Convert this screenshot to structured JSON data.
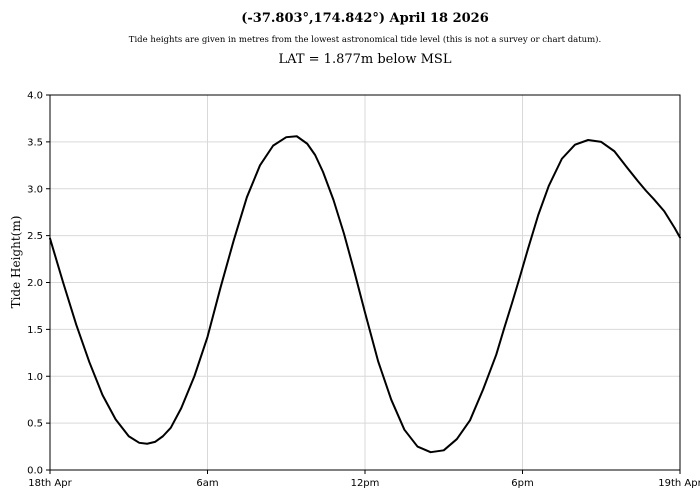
{
  "chart_data": {
    "type": "line",
    "title": "(-37.803°,174.842°) April 18 2026",
    "subtitle": "Tide heights are given in metres from the lowest astronomical tide level (this is not a survey or chart datum).",
    "annotation": "LAT = 1.877m below MSL",
    "xlabel": "",
    "ylabel": "Tide Height(m)",
    "xlim": [
      0,
      24
    ],
    "ylim": [
      0,
      4
    ],
    "grid": true,
    "line_color": "#000000",
    "grid_color": "#d9d9d9",
    "x_ticks": [
      {
        "value": 0,
        "label": "18th Apr"
      },
      {
        "value": 6,
        "label": "6am"
      },
      {
        "value": 12,
        "label": "12pm"
      },
      {
        "value": 18,
        "label": "6pm"
      },
      {
        "value": 24,
        "label": "19th Apr"
      }
    ],
    "y_ticks": [
      {
        "value": 0,
        "label": "0.0"
      },
      {
        "value": 0.5,
        "label": "0.5"
      },
      {
        "value": 1,
        "label": "1.0"
      },
      {
        "value": 1.5,
        "label": "1.5"
      },
      {
        "value": 2,
        "label": "2.0"
      },
      {
        "value": 2.5,
        "label": "2.5"
      },
      {
        "value": 3,
        "label": "3.0"
      },
      {
        "value": 3.5,
        "label": "3.5"
      },
      {
        "value": 4,
        "label": "4.0"
      }
    ],
    "series": [
      {
        "x": [
          0,
          0.5,
          1,
          1.5,
          2,
          2.5,
          3,
          3.4,
          3.7,
          4,
          4.3,
          4.6,
          5,
          5.5,
          6,
          6.5,
          7,
          7.5,
          8,
          8.5,
          9,
          9.4,
          9.8,
          10.1,
          10.4,
          10.8,
          11.2,
          11.6,
          12,
          12.5,
          13,
          13.5,
          14,
          14.5,
          15,
          15.5,
          16,
          16.5,
          17,
          17.3,
          17.6,
          17.9,
          18.2,
          18.6,
          19,
          19.5,
          20,
          20.5,
          21,
          21.5,
          22,
          22.4,
          22.7,
          23,
          23.4,
          23.8,
          24
        ],
        "y": [
          2.47,
          2.0,
          1.55,
          1.15,
          0.8,
          0.54,
          0.36,
          0.29,
          0.28,
          0.3,
          0.36,
          0.45,
          0.66,
          1.0,
          1.42,
          1.95,
          2.45,
          2.91,
          3.25,
          3.46,
          3.55,
          3.56,
          3.48,
          3.36,
          3.18,
          2.88,
          2.52,
          2.11,
          1.68,
          1.16,
          0.75,
          0.43,
          0.25,
          0.19,
          0.21,
          0.33,
          0.53,
          0.86,
          1.23,
          1.51,
          1.78,
          2.06,
          2.35,
          2.72,
          3.03,
          3.32,
          3.47,
          3.52,
          3.5,
          3.4,
          3.22,
          3.08,
          2.98,
          2.89,
          2.76,
          2.58,
          2.48
        ]
      }
    ]
  }
}
